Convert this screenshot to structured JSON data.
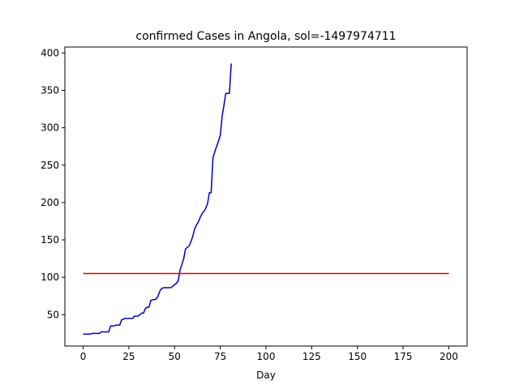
{
  "chart_data": {
    "type": "line",
    "title": "confirmed Cases in Angola, sol=-1497974711",
    "xlabel": "Day",
    "ylabel": "",
    "xlim": [
      -10,
      210
    ],
    "ylim": [
      8,
      408
    ],
    "x_ticks": [
      0,
      25,
      50,
      75,
      100,
      125,
      150,
      175,
      200
    ],
    "y_ticks": [
      50,
      100,
      150,
      200,
      250,
      300,
      350,
      400
    ],
    "grid": false,
    "legend": "none",
    "series": [
      {
        "color": "#0000cc",
        "x": [
          0,
          3,
          4,
          5,
          8,
          9,
          10,
          13,
          14,
          15,
          17,
          18,
          20,
          21,
          23,
          24,
          27,
          28,
          29,
          30,
          31,
          32,
          33,
          34,
          35,
          36,
          37,
          38,
          39,
          40,
          41,
          42,
          43,
          44,
          45,
          46,
          47,
          48,
          49,
          50,
          51,
          52,
          53,
          54,
          55,
          56,
          57,
          58,
          59,
          60,
          61,
          62,
          63,
          64,
          65,
          66,
          67,
          68,
          69,
          70,
          71,
          72,
          73,
          74,
          75,
          76,
          77,
          78,
          79,
          80,
          81
        ],
        "y": [
          24,
          24,
          24,
          25,
          25,
          25,
          27,
          27,
          27,
          35,
          35,
          36,
          36,
          43,
          45,
          45,
          45,
          48,
          48,
          48,
          50,
          52,
          52,
          58,
          60,
          60,
          69,
          70,
          70,
          71,
          75,
          82,
          85,
          86,
          86,
          86,
          86,
          86,
          88,
          90,
          92,
          95,
          110,
          117,
          125,
          138,
          140,
          142,
          148,
          155,
          165,
          170,
          174,
          180,
          185,
          188,
          192,
          198,
          213,
          213,
          260,
          268,
          275,
          282,
          290,
          315,
          330,
          346,
          346,
          346,
          386
        ]
      },
      {
        "color": "#e00000",
        "x": [
          0,
          200
        ],
        "y": [
          105,
          105
        ]
      }
    ]
  }
}
